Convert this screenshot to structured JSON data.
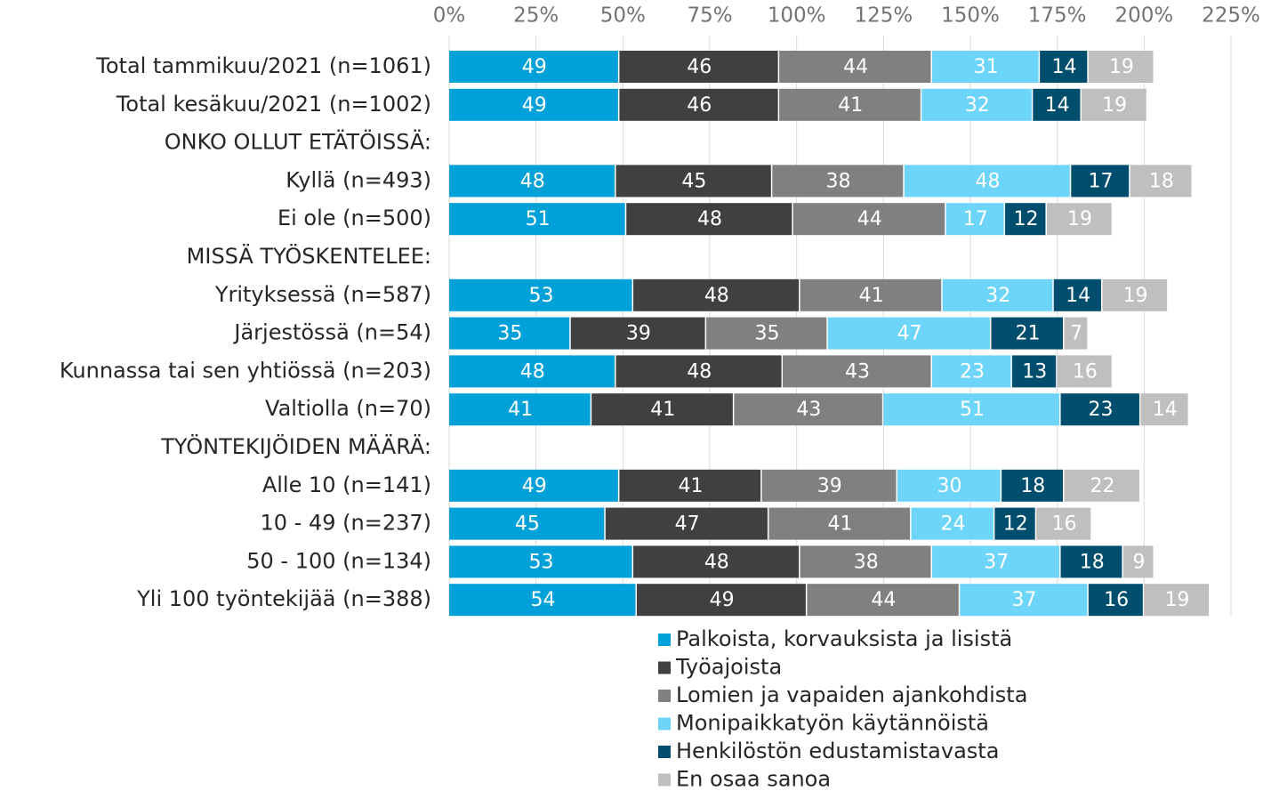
{
  "chart_data": {
    "type": "stacked_barh",
    "categories": [
      "Total tammikuu/2021 (n=1061)",
      "Total kesäkuu/2021 (n=1002)",
      "ONKO OLLUT ETÄTÖISSÄ:",
      "Kyllä (n=493)",
      "Ei ole (n=500)",
      "MISSÄ TYÖSKENTELEE:",
      "Yrityksessä (n=587)",
      "Järjestössä (n=54)",
      "Kunnassa tai sen yhtiössä (n=203)",
      "Valtiolla (n=70)",
      "TYÖNTEKIJÖIDEN MÄÄRÄ:",
      "Alle 10 (n=141)",
      "10 - 49 (n=237)",
      "50 - 100 (n=134)",
      "Yli 100 työntekijää (n=388)"
    ],
    "series": [
      {
        "name": "Palkoista, korvauksista ja lisistä",
        "color": "#00a0d8",
        "values": [
          49,
          49,
          null,
          48,
          51,
          null,
          53,
          35,
          48,
          41,
          null,
          49,
          45,
          53,
          54
        ]
      },
      {
        "name": "Työajoista",
        "color": "#404040",
        "values": [
          46,
          46,
          null,
          45,
          48,
          null,
          48,
          39,
          48,
          41,
          null,
          41,
          47,
          48,
          49
        ]
      },
      {
        "name": "Lomien ja vapaiden ajankohdista",
        "color": "#808080",
        "values": [
          44,
          41,
          null,
          38,
          44,
          null,
          41,
          35,
          43,
          43,
          null,
          39,
          41,
          38,
          44
        ]
      },
      {
        "name": "Monipaikkatyön käytännöistä",
        "color": "#6dd5fa",
        "values": [
          31,
          32,
          null,
          48,
          17,
          null,
          32,
          47,
          23,
          51,
          null,
          30,
          24,
          37,
          37
        ]
      },
      {
        "name": "Henkilöstön edustamistavasta",
        "color": "#004e6e",
        "values": [
          14,
          14,
          null,
          17,
          12,
          null,
          14,
          21,
          13,
          23,
          null,
          18,
          12,
          18,
          16
        ]
      },
      {
        "name": "En osaa sanoa",
        "color": "#bfbfbf",
        "values": [
          19,
          19,
          null,
          18,
          19,
          null,
          19,
          7,
          16,
          14,
          null,
          22,
          16,
          9,
          19
        ]
      }
    ],
    "xlim": [
      0,
      225
    ],
    "xticks": [
      {
        "value": 0,
        "label": "0%"
      },
      {
        "value": 25,
        "label": "25%"
      },
      {
        "value": 50,
        "label": "50%"
      },
      {
        "value": 75,
        "label": "75%"
      },
      {
        "value": 100,
        "label": "100%"
      },
      {
        "value": 125,
        "label": "125%"
      },
      {
        "value": 150,
        "label": "150%"
      },
      {
        "value": 175,
        "label": "175%"
      },
      {
        "value": 200,
        "label": "200%"
      },
      {
        "value": 225,
        "label": "225%"
      }
    ],
    "grid": true,
    "legend": "bottom"
  }
}
